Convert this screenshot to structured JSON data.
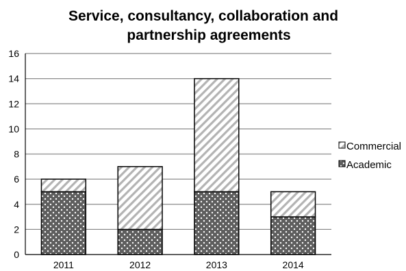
{
  "chart_data": {
    "type": "bar",
    "stacked": true,
    "title": [
      "Service, consultancy, collaboration and",
      "partnership agreements"
    ],
    "xlabel": "",
    "ylabel": "",
    "categories": [
      "2011",
      "2012",
      "2013",
      "2014"
    ],
    "series": [
      {
        "name": "Academic",
        "values": [
          5,
          2,
          5,
          3
        ],
        "fill": "dots",
        "color": "#5e5e5e"
      },
      {
        "name": "Commercial",
        "values": [
          1,
          5,
          9,
          2
        ],
        "fill": "diagonal-stripes",
        "color": "#b3b3b3"
      }
    ],
    "ylim": [
      0,
      16
    ],
    "yticks": [
      "0",
      "2",
      "4",
      "6",
      "8",
      "10",
      "12",
      "14",
      "16"
    ],
    "grid": true,
    "legend_position": "right",
    "legend_order": [
      "Commercial",
      "Academic"
    ]
  }
}
